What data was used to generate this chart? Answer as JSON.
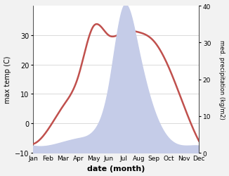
{
  "months": [
    "Jan",
    "Feb",
    "Mar",
    "Apr",
    "May",
    "Jun",
    "Jul",
    "Aug",
    "Sep",
    "Oct",
    "Nov",
    "Dec"
  ],
  "temperature": [
    -7,
    -2,
    6,
    16,
    33,
    30,
    31,
    31,
    28,
    19,
    6,
    -6
  ],
  "precipitation": [
    2,
    2,
    3,
    4,
    6,
    18,
    40,
    28,
    12,
    4,
    2,
    2
  ],
  "temp_color": "#c0504d",
  "precip_fill_color": "#c5cce8",
  "temp_ylim": [
    -10,
    40
  ],
  "precip_ylim": [
    0,
    40
  ],
  "temp_yticks": [
    -10,
    0,
    10,
    20,
    30
  ],
  "precip_yticks": [
    0,
    10,
    20,
    30,
    40
  ],
  "xlabel": "date (month)",
  "ylabel_left": "max temp (C)",
  "ylabel_right": "med. precipitation (kg/m2)",
  "background_color": "#ffffff",
  "fig_bg_color": "#f2f2f2"
}
